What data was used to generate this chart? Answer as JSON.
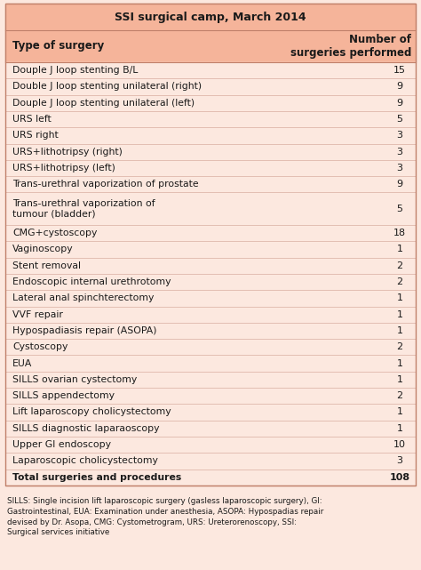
{
  "title": "SSI surgical camp, March 2014",
  "col1_header": "Type of surgery",
  "col2_header": "Number of\nsurgeries performed",
  "rows": [
    [
      "Douple J loop stenting B/L",
      "15"
    ],
    [
      "Double J loop stenting unilateral (right)",
      "9"
    ],
    [
      "Douple J loop stenting unilateral (left)",
      "9"
    ],
    [
      "URS left",
      "5"
    ],
    [
      "URS right",
      "3"
    ],
    [
      "URS+lithotripsy (right)",
      "3"
    ],
    [
      "URS+lithotripsy (left)",
      "3"
    ],
    [
      "Trans-urethral vaporization of prostate",
      "9"
    ],
    [
      "Trans-urethral vaporization of\ntumour (bladder)",
      "5"
    ],
    [
      "CMG+cystoscopy",
      "18"
    ],
    [
      "Vaginoscopy",
      "1"
    ],
    [
      "Stent removal",
      "2"
    ],
    [
      "Endoscopic internal urethrotomy",
      "2"
    ],
    [
      "Lateral anal spinchterectomy",
      "1"
    ],
    [
      "VVF repair",
      "1"
    ],
    [
      "Hypospadiasis repair (ASOPA)",
      "1"
    ],
    [
      "Cystoscopy",
      "2"
    ],
    [
      "EUA",
      "1"
    ],
    [
      "SILLS ovarian cystectomy",
      "1"
    ],
    [
      "SILLS appendectomy",
      "2"
    ],
    [
      "Lift laparoscopy cholicystectomy",
      "1"
    ],
    [
      "SILLS diagnostic laparaoscopy",
      "1"
    ],
    [
      "Upper GI endoscopy",
      "10"
    ],
    [
      "Laparoscopic cholicystectomy",
      "3"
    ],
    [
      "Total surgeries and procedures",
      "108"
    ]
  ],
  "footnote": "SILLS: Single incision lift laparoscopic surgery (gasless laparoscopic surgery), GI:\nGastrointestinal, EUA: Examination under anesthesia, ASOPA: Hypospadias repair\ndevised by Dr. Asopa, CMG: Cystometrogram, URS: Ureterorenoscopy, SSI:\nSurgical services initiative",
  "bg_color": "#fce8df",
  "header_bg": "#f5b49a",
  "text_color": "#1a1a1a",
  "bold_color": "#1a1a1a",
  "fig_width": 4.74,
  "fig_height": 6.41,
  "dpi": 100
}
